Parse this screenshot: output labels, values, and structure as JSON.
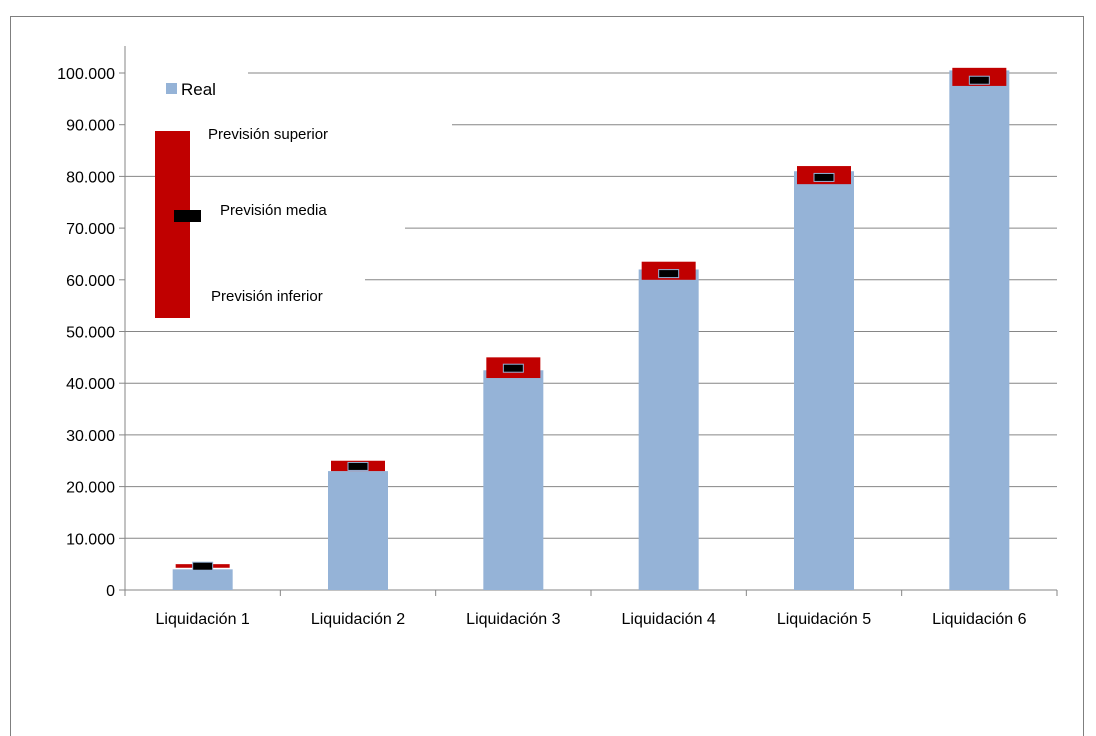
{
  "chart_data": {
    "type": "bar",
    "title": "",
    "xlabel": "",
    "ylabel": "",
    "categories": [
      "Liquidación 1",
      "Liquidación 2",
      "Liquidación 3",
      "Liquidación 4",
      "Liquidación 5",
      "Liquidación 6"
    ],
    "ylim": [
      0,
      100000
    ],
    "y_ticks": [
      "0",
      "10.000",
      "20.000",
      "30.000",
      "40.000",
      "50.000",
      "60.000",
      "70.000",
      "80.000",
      "90.000",
      "100.000"
    ],
    "grid": true,
    "series": [
      {
        "name": "Real",
        "values": [
          4000,
          23000,
          42500,
          62000,
          81000,
          100500
        ]
      },
      {
        "name": "Previsión superior",
        "values": [
          5000,
          25000,
          45000,
          63500,
          82000,
          101000
        ]
      },
      {
        "name": "Previsión media",
        "values": [
          4600,
          23900,
          42900,
          61200,
          79800,
          98600
        ]
      },
      {
        "name": "Previsión inferior",
        "values": [
          4300,
          23000,
          41000,
          60000,
          78500,
          97500
        ]
      }
    ],
    "legend": {
      "position": "top-left",
      "real_label": "Real",
      "upper_label": "Previsión superior",
      "mean_label": "Previsión media",
      "lower_label": "Previsión inferior"
    },
    "colors": {
      "real": "#95b3d7",
      "forecast_range": "#c00000",
      "forecast_mean": "#000000",
      "grid": "#868686",
      "axis": "#868686"
    }
  }
}
